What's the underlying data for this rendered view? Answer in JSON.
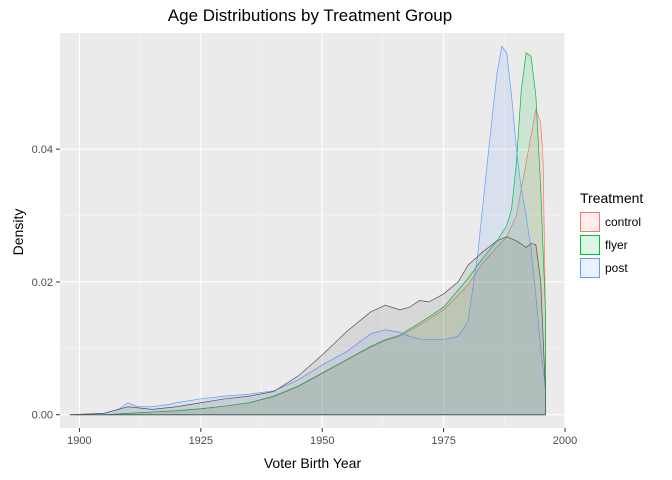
{
  "chart_data": {
    "type": "area",
    "title": "Age Distributions by Treatment Group",
    "xlabel": "Voter Birth Year",
    "ylabel": "Density",
    "xlim": [
      1896,
      2000
    ],
    "ylim": [
      -0.002,
      0.0575
    ],
    "x_ticks": [
      1900,
      1925,
      1950,
      1975,
      2000
    ],
    "y_ticks": [
      0.0,
      0.02,
      0.04
    ],
    "x_tick_labels": [
      "1900",
      "1925",
      "1950",
      "1975",
      "2000"
    ],
    "y_tick_labels": [
      "0.00",
      "0.02",
      "0.04"
    ],
    "grid": true,
    "legend_title": "Treatment",
    "legend_position": "right",
    "series": [
      {
        "name": "control",
        "color": "#F8766D",
        "points": [
          [
            1898,
            0
          ],
          [
            1905,
            0
          ],
          [
            1910,
            0.0002
          ],
          [
            1915,
            0.0004
          ],
          [
            1920,
            0.0006
          ],
          [
            1925,
            0.0009
          ],
          [
            1930,
            0.0013
          ],
          [
            1935,
            0.0018
          ],
          [
            1940,
            0.0027
          ],
          [
            1945,
            0.0042
          ],
          [
            1950,
            0.0062
          ],
          [
            1955,
            0.0082
          ],
          [
            1960,
            0.0102
          ],
          [
            1963,
            0.0112
          ],
          [
            1966,
            0.0118
          ],
          [
            1970,
            0.0135
          ],
          [
            1975,
            0.0158
          ],
          [
            1980,
            0.0195
          ],
          [
            1983,
            0.0228
          ],
          [
            1986,
            0.0252
          ],
          [
            1988,
            0.0268
          ],
          [
            1990,
            0.03
          ],
          [
            1992,
            0.038
          ],
          [
            1993,
            0.042
          ],
          [
            1994,
            0.046
          ],
          [
            1995,
            0.044
          ],
          [
            1995.5,
            0.038
          ],
          [
            1996,
            0.014
          ],
          [
            1996,
            0
          ]
        ]
      },
      {
        "name": "flyer",
        "color": "#00BA38",
        "points": [
          [
            1898,
            0
          ],
          [
            1905,
            0
          ],
          [
            1910,
            0.0002
          ],
          [
            1915,
            0.0004
          ],
          [
            1920,
            0.0006
          ],
          [
            1925,
            0.0009
          ],
          [
            1930,
            0.0013
          ],
          [
            1935,
            0.0018
          ],
          [
            1940,
            0.0028
          ],
          [
            1945,
            0.0043
          ],
          [
            1950,
            0.0063
          ],
          [
            1955,
            0.0083
          ],
          [
            1960,
            0.0103
          ],
          [
            1963,
            0.0113
          ],
          [
            1966,
            0.012
          ],
          [
            1970,
            0.0138
          ],
          [
            1975,
            0.0162
          ],
          [
            1980,
            0.0205
          ],
          [
            1983,
            0.0235
          ],
          [
            1986,
            0.0262
          ],
          [
            1988,
            0.0285
          ],
          [
            1989,
            0.031
          ],
          [
            1990,
            0.038
          ],
          [
            1991,
            0.049
          ],
          [
            1992,
            0.0545
          ],
          [
            1993,
            0.054
          ],
          [
            1994,
            0.048
          ],
          [
            1995,
            0.034
          ],
          [
            1996,
            0.015
          ],
          [
            1996,
            0
          ]
        ]
      },
      {
        "name": "post",
        "color": "#619CFF",
        "points": [
          [
            1898,
            0
          ],
          [
            1905,
            0.0002
          ],
          [
            1908,
            0.0008
          ],
          [
            1910,
            0.0018
          ],
          [
            1912,
            0.0012
          ],
          [
            1915,
            0.0012
          ],
          [
            1918,
            0.0015
          ],
          [
            1920,
            0.0018
          ],
          [
            1925,
            0.0024
          ],
          [
            1930,
            0.0028
          ],
          [
            1935,
            0.0031
          ],
          [
            1940,
            0.0036
          ],
          [
            1945,
            0.0052
          ],
          [
            1950,
            0.0075
          ],
          [
            1955,
            0.0095
          ],
          [
            1960,
            0.0122
          ],
          [
            1963,
            0.0128
          ],
          [
            1966,
            0.0124
          ],
          [
            1968,
            0.0118
          ],
          [
            1970,
            0.0114
          ],
          [
            1975,
            0.0113
          ],
          [
            1978,
            0.0118
          ],
          [
            1980,
            0.014
          ],
          [
            1982,
            0.024
          ],
          [
            1984,
            0.038
          ],
          [
            1986,
            0.0515
          ],
          [
            1987,
            0.0555
          ],
          [
            1988,
            0.0545
          ],
          [
            1989,
            0.048
          ],
          [
            1990,
            0.04
          ],
          [
            1991,
            0.034
          ],
          [
            1992,
            0.03
          ],
          [
            1993,
            0.025
          ],
          [
            1994,
            0.018
          ],
          [
            1995,
            0.01
          ],
          [
            1996,
            0.004
          ],
          [
            1996,
            0
          ]
        ]
      },
      {
        "name": "",
        "color": "#555555",
        "points": [
          [
            1898,
            0
          ],
          [
            1905,
            0.0002
          ],
          [
            1910,
            0.0012
          ],
          [
            1915,
            0.0008
          ],
          [
            1920,
            0.0012
          ],
          [
            1925,
            0.0018
          ],
          [
            1930,
            0.0024
          ],
          [
            1935,
            0.0028
          ],
          [
            1940,
            0.0035
          ],
          [
            1945,
            0.0058
          ],
          [
            1950,
            0.009
          ],
          [
            1955,
            0.0125
          ],
          [
            1960,
            0.0155
          ],
          [
            1963,
            0.0165
          ],
          [
            1966,
            0.0158
          ],
          [
            1968,
            0.0162
          ],
          [
            1970,
            0.0172
          ],
          [
            1972,
            0.017
          ],
          [
            1975,
            0.0182
          ],
          [
            1978,
            0.02
          ],
          [
            1980,
            0.0225
          ],
          [
            1983,
            0.0245
          ],
          [
            1986,
            0.0262
          ],
          [
            1988,
            0.0268
          ],
          [
            1990,
            0.0262
          ],
          [
            1992,
            0.0252
          ],
          [
            1993,
            0.0258
          ],
          [
            1994,
            0.0256
          ],
          [
            1995,
            0.02
          ],
          [
            1996,
            0.003
          ],
          [
            1996,
            0
          ]
        ]
      }
    ]
  }
}
